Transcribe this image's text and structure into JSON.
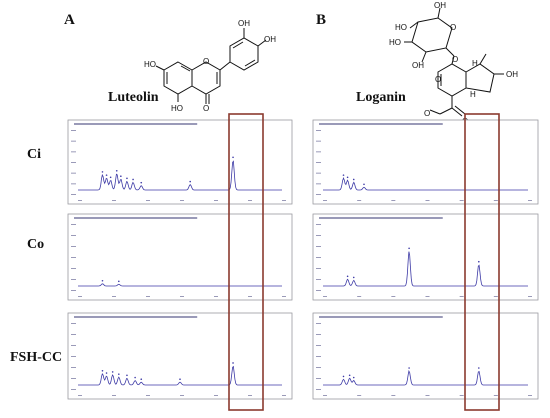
{
  "panels": [
    {
      "letter": "A",
      "compound": "Luteolin",
      "atoms": [
        "OH",
        "OH",
        "HO",
        "O",
        "HO",
        "O"
      ]
    },
    {
      "letter": "B",
      "compound": "Loganin",
      "atoms": [
        "OH",
        "HO",
        "O",
        "HO",
        "OH",
        "O",
        "H",
        "O",
        "H",
        "OH",
        "O",
        "O"
      ]
    }
  ],
  "rows": [
    "Ci",
    "Co",
    "FSH-CC"
  ],
  "colors": {
    "trace": "#3d3aa6",
    "highlight": "#8b3a2f",
    "frame": "#9a9aa0"
  },
  "chart_data": [
    {
      "type": "line",
      "panel": "A",
      "compound": "Luteolin",
      "x_range": [
        0,
        1
      ],
      "y_range": [
        0,
        1
      ],
      "series": [
        {
          "sample": "Ci",
          "peaks": [
            {
              "x": 0.12,
              "h": 0.28
            },
            {
              "x": 0.14,
              "h": 0.22
            },
            {
              "x": 0.16,
              "h": 0.18
            },
            {
              "x": 0.19,
              "h": 0.3
            },
            {
              "x": 0.21,
              "h": 0.2
            },
            {
              "x": 0.24,
              "h": 0.16
            },
            {
              "x": 0.27,
              "h": 0.14
            },
            {
              "x": 0.31,
              "h": 0.08
            },
            {
              "x": 0.55,
              "h": 0.1
            },
            {
              "x": 0.76,
              "h": 0.55
            }
          ]
        },
        {
          "sample": "Co",
          "peaks": [
            {
              "x": 0.12,
              "h": 0.04
            },
            {
              "x": 0.2,
              "h": 0.03
            }
          ]
        },
        {
          "sample": "FSH-CC",
          "peaks": [
            {
              "x": 0.12,
              "h": 0.2
            },
            {
              "x": 0.14,
              "h": 0.16
            },
            {
              "x": 0.17,
              "h": 0.18
            },
            {
              "x": 0.2,
              "h": 0.14
            },
            {
              "x": 0.24,
              "h": 0.12
            },
            {
              "x": 0.28,
              "h": 0.08
            },
            {
              "x": 0.31,
              "h": 0.05
            },
            {
              "x": 0.5,
              "h": 0.05
            },
            {
              "x": 0.76,
              "h": 0.34
            }
          ]
        }
      ]
    },
    {
      "type": "line",
      "panel": "B",
      "compound": "Loganin",
      "x_range": [
        0,
        1
      ],
      "y_range": [
        0,
        1
      ],
      "series": [
        {
          "sample": "Ci",
          "peaks": [
            {
              "x": 0.1,
              "h": 0.22
            },
            {
              "x": 0.12,
              "h": 0.18
            },
            {
              "x": 0.15,
              "h": 0.14
            },
            {
              "x": 0.2,
              "h": 0.05
            }
          ]
        },
        {
          "sample": "Co",
          "peaks": [
            {
              "x": 0.12,
              "h": 0.12
            },
            {
              "x": 0.15,
              "h": 0.1
            },
            {
              "x": 0.42,
              "h": 0.62
            },
            {
              "x": 0.76,
              "h": 0.38
            }
          ]
        },
        {
          "sample": "FSH-CC",
          "peaks": [
            {
              "x": 0.1,
              "h": 0.1
            },
            {
              "x": 0.13,
              "h": 0.12
            },
            {
              "x": 0.15,
              "h": 0.08
            },
            {
              "x": 0.42,
              "h": 0.25
            },
            {
              "x": 0.76,
              "h": 0.25
            }
          ]
        }
      ]
    }
  ]
}
